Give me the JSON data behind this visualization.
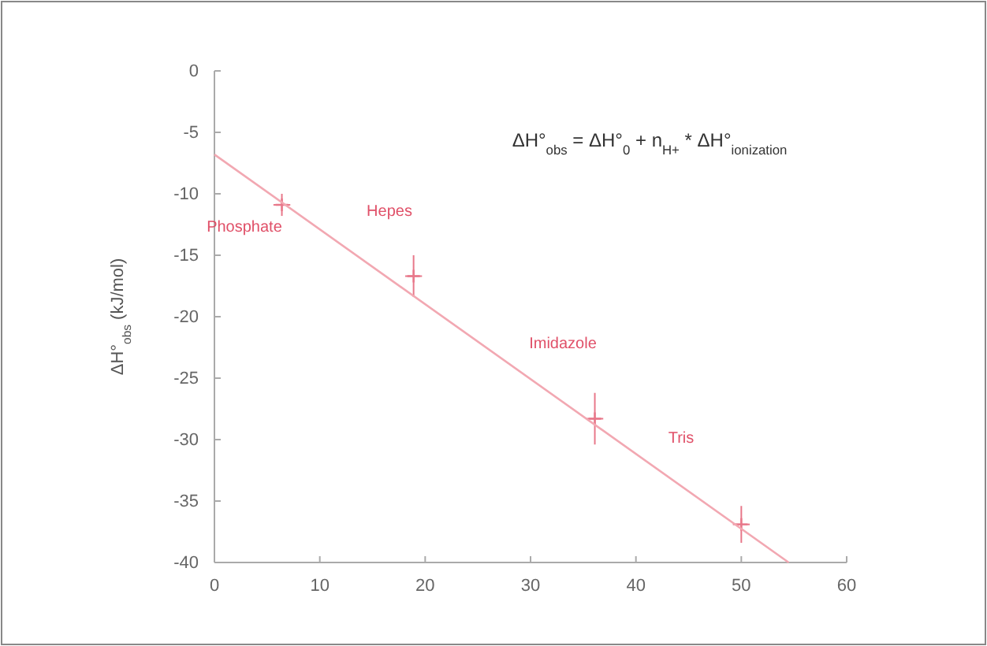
{
  "chart_data": {
    "type": "scatter",
    "ylabel": "ΔH°$_{obs}$ (kJ/mol)",
    "xlim": [
      0,
      60
    ],
    "xticks": [
      0,
      10,
      20,
      30,
      40,
      50,
      60
    ],
    "ylim": [
      -40,
      0
    ],
    "yticks": [
      -40,
      -35,
      -30,
      -25,
      -20,
      -15,
      -10,
      -5,
      0
    ],
    "grid": false,
    "series": [
      {
        "marker": "cross",
        "color": "#e8788a",
        "x": [
          6.4,
          18.9,
          36.1,
          50.0
        ],
        "values": [
          -10.9,
          -16.7,
          -28.3,
          -36.9
        ],
        "errors": [
          0.9,
          1.7,
          2.1,
          1.5
        ],
        "xerrors": [
          0.8,
          0.8,
          0.8,
          0.8
        ]
      },
      {
        "type": "line",
        "color": "#f2a8b2",
        "x": [
          0,
          54.5
        ],
        "values": [
          -6.8,
          -40
        ],
        "line_style": "solid"
      }
    ],
    "annotations": [
      "ΔH°$_{obs}$ = ΔH°$_{0}$ + n$_{H+}$ * ΔH°$_{ionization}$",
      "Phosphate",
      "Hepes",
      "Imidazole",
      "Tris"
    ]
  }
}
